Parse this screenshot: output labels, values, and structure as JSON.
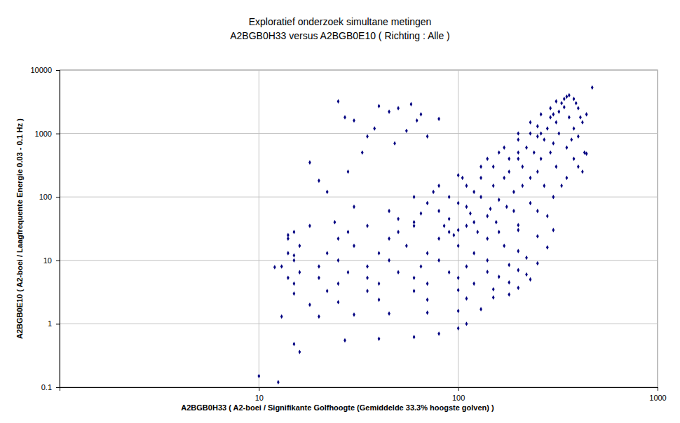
{
  "chart_data": {
    "type": "scatter",
    "title": "Exploratief onderzoek simultane metingen",
    "subtitle": "A2BGB0H33 versus A2BGB0E10 ( Richting : Alle )",
    "x_label": "A2BGB0H33 ( A2-boei / Signifikante Golfhoogte (Gemiddelde 33.3% hoogste golven) )",
    "y_label": "A2BGB0E10 ( A2-boei / Laagfrequente Energie 0.03 - 0.1 Hz )",
    "log": true,
    "grid": true,
    "color": "#000080",
    "marker": "diamond",
    "xlim": [
      1,
      1000
    ],
    "ylim": [
      0.1,
      10000
    ],
    "xticks": [
      10,
      100,
      1000
    ],
    "yticks": [
      0.1,
      1,
      10,
      100,
      1000,
      10000
    ],
    "x": [
      10,
      12.5,
      15,
      16,
      13,
      12,
      14,
      15,
      18,
      20,
      25,
      27,
      30,
      35,
      40,
      45,
      50,
      58,
      62,
      65,
      28,
      22,
      33,
      38,
      48,
      55,
      70,
      24,
      30,
      80,
      27,
      40,
      60,
      80,
      100,
      110,
      20,
      30,
      45,
      70,
      100,
      130,
      18,
      25,
      40,
      70,
      110,
      150,
      180,
      15,
      22,
      35,
      60,
      100,
      150,
      200,
      15,
      25,
      40,
      70,
      120,
      180,
      230,
      14,
      20,
      35,
      60,
      100,
      160,
      220,
      16,
      28,
      50,
      90,
      140,
      200,
      13,
      20,
      35,
      65,
      110,
      180,
      250,
      15,
      25,
      45,
      80,
      140,
      220,
      14,
      22,
      40,
      70,
      120,
      200,
      280,
      16,
      30,
      55,
      100,
      170,
      14,
      25,
      45,
      80,
      140,
      250,
      15,
      28,
      50,
      90,
      160,
      300,
      18,
      35,
      60,
      110,
      200,
      45,
      60,
      80,
      100,
      130,
      160,
      200,
      250,
      300,
      330,
      350,
      380,
      400,
      420,
      470,
      440,
      430,
      400,
      350,
      300,
      250,
      200,
      280,
      330,
      370,
      60,
      80,
      100,
      120,
      150,
      180,
      200,
      220,
      250,
      280,
      300,
      260,
      230,
      190,
      160,
      140,
      120,
      100,
      90,
      110,
      130,
      170,
      210,
      240,
      270,
      310,
      320,
      340,
      290,
      260,
      230,
      200,
      180,
      150,
      130,
      110,
      90,
      70,
      50,
      75,
      65,
      85,
      95,
      125,
      155,
      190,
      230,
      270,
      310,
      350,
      380,
      360,
      320,
      290,
      250,
      210,
      175,
      145,
      115,
      105,
      140,
      170,
      200,
      230,
      260,
      290,
      310,
      340,
      360,
      390,
      410,
      400,
      380,
      420,
      440
    ],
    "values": [
      0.15,
      0.12,
      0.48,
      0.36,
      1.3,
      7.8,
      25,
      12,
      350,
      180,
      3200,
      1800,
      1600,
      900,
      2700,
      2200,
      2500,
      2900,
      1600,
      2000,
      250,
      120,
      500,
      1200,
      700,
      1100,
      900,
      40,
      70,
      1700,
      0.55,
      0.58,
      0.62,
      0.7,
      0.85,
      1.0,
      1.3,
      1.4,
      1.45,
      1.5,
      1.6,
      1.7,
      2.0,
      2.2,
      2.4,
      2.4,
      2.5,
      2.6,
      2.9,
      3.0,
      3.3,
      3.3,
      3.3,
      3.4,
      3.5,
      3.7,
      4.3,
      4.3,
      4.3,
      4.3,
      4.3,
      4.5,
      5,
      5.3,
      5.3,
      5.3,
      5.3,
      5.3,
      5.5,
      6,
      6.5,
      6.5,
      6.5,
      6.5,
      6.6,
      7,
      8,
      8,
      8,
      8,
      8,
      8.5,
      9,
      10,
      10,
      10,
      10,
      10,
      11,
      13,
      13,
      13,
      13,
      13,
      14,
      16,
      17,
      17,
      17,
      17,
      17,
      22,
      22,
      22,
      22,
      22,
      24,
      28,
      28,
      28,
      28,
      28,
      30,
      35,
      35,
      35,
      35,
      36,
      60,
      100,
      150,
      220,
      300,
      500,
      800,
      1300,
      2000,
      3000,
      3800,
      3500,
      2500,
      1500,
      5300,
      2000,
      500,
      300,
      200,
      100,
      60,
      30,
      50,
      150,
      800,
      40,
      60,
      80,
      120,
      150,
      250,
      400,
      600,
      900,
      1200,
      700,
      400,
      200,
      120,
      90,
      50,
      40,
      30,
      45,
      70,
      100,
      200,
      300,
      500,
      800,
      1500,
      2200,
      2600,
      1800,
      1000,
      1000,
      500,
      400,
      300,
      200,
      150,
      100,
      80,
      45,
      120,
      55,
      35,
      25,
      28,
      40,
      60,
      80,
      150,
      300,
      600,
      1200,
      1800,
      1000,
      500,
      250,
      150,
      70,
      65,
      55,
      200,
      400,
      600,
      1000,
      1500,
      2000,
      2500,
      3200,
      3500,
      4000,
      3000,
      1800,
      900,
      400,
      250,
      480
    ]
  }
}
